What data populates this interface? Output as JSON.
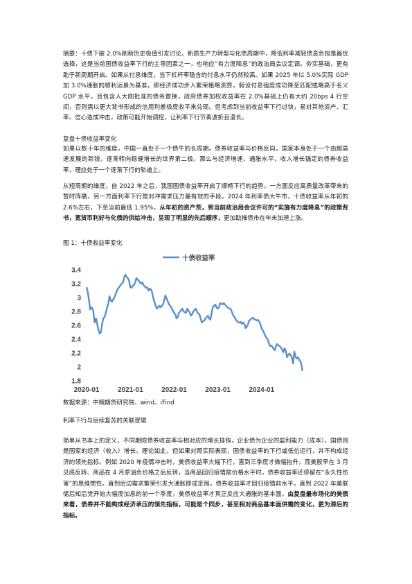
{
  "abstract": "摘要：十债下破 2.0%刷新历史极值引发讨论。新质生产力转型与化债周期中，降低利率减轻债息负担是最优选择，这是当前国债收益率下行的主导因素之一，也响应“有力度降息”的政治局会议定调。夯实基础，更有助于新周期开启。如果从付息维度，当下杠杆率隐含的付息水平仍然较高。如果 2025 年以 5.0%实际 GDP 加 3.0%通胀的顺利远景为基准，即经济成功步入繁荣粗略测算，假设付息强度成功降至匹配或略高于名义 GDP 水平，且包含人大刚批准的债务置换，政府债券加权收益率在 2.0%基础上仍有大约 20bps 4 行空间，否则需以更大背书形成的信用利差极度收平来兑现。但考虑到当前收益率下行过快，易对其他资产、汇率、信心造成冲击，政策可能开始调控，让利率下行节奏波折且漫长。",
  "section1": {
    "heading": "复盘十债收益率变化",
    "para1": "如果以数十年的维度，中国一直处于一个债牛的长周期。债券收益率与价格反向，国家本身处于一个由超高速发展的新锐，逐渐转向稳健增长的世界第二极。那么与经济增速、通胀水平、收入增长锚定的债券收益率，理应处于一个逐渐下行的轨道上。",
    "para2_normal": "从短周期的维度，自 2022 年之后，我国国债收益率开启了顺畅下行的趋势，一方面反应高质量改革带来的暂时阵痛，另一方面利率下行是对冲需求压力最有效的手段。2024 年利率债大牛市，十债收益率从年初的 2.6%左右，下至当前最低 1.95%，",
    "para2_bold": "从年初的资产荒，到当前政治局会议许可的“实施有力度降息”的政策背书，宽货币利好与化债的供给冲击，呈现了明显的先后顺序，",
    "para2_tail": "更加助推债市在年末加速上涨。"
  },
  "figure": {
    "caption": "图 1：十债收益率变化",
    "source": "数据来源：中粮期货研究院、wind、iFind"
  },
  "chart_data": {
    "type": "line",
    "title": "",
    "xlabel": "",
    "ylabel": "",
    "legend_position": "top-center",
    "grid": false,
    "series": [
      {
        "name": "十债收益率",
        "color": "#5b8ec9",
        "points": [
          [
            "2020-01-02",
            3.14
          ],
          [
            "2020-01-10",
            3.09
          ],
          [
            "2020-01-20",
            2.98
          ],
          [
            "2020-01-31",
            2.83
          ],
          [
            "2020-02-12",
            2.86
          ],
          [
            "2020-02-25",
            2.82
          ],
          [
            "2020-03-08",
            2.64
          ],
          [
            "2020-03-20",
            2.7
          ],
          [
            "2020-04-01",
            2.6
          ],
          [
            "2020-04-10",
            2.53
          ],
          [
            "2020-04-20",
            2.48
          ],
          [
            "2020-04-30",
            2.5
          ],
          [
            "2020-05-10",
            2.62
          ],
          [
            "2020-05-20",
            2.7
          ],
          [
            "2020-05-31",
            2.72
          ],
          [
            "2020-06-10",
            2.78
          ],
          [
            "2020-06-20",
            2.86
          ],
          [
            "2020-06-30",
            2.9
          ],
          [
            "2020-07-10",
            3.02
          ],
          [
            "2020-07-20",
            2.96
          ],
          [
            "2020-07-31",
            2.94
          ],
          [
            "2020-08-10",
            2.97
          ],
          [
            "2020-08-20",
            3.0
          ],
          [
            "2020-08-31",
            3.05
          ],
          [
            "2020-09-10",
            3.1
          ],
          [
            "2020-09-20",
            3.13
          ],
          [
            "2020-09-30",
            3.15
          ],
          [
            "2020-10-10",
            3.18
          ],
          [
            "2020-10-20",
            3.2
          ],
          [
            "2020-11-01",
            3.22
          ],
          [
            "2020-11-12",
            3.3
          ],
          [
            "2020-11-20",
            3.33
          ],
          [
            "2020-11-30",
            3.3
          ],
          [
            "2020-12-10",
            3.28
          ],
          [
            "2020-12-20",
            3.25
          ],
          [
            "2020-12-31",
            3.15
          ],
          [
            "2021-01-10",
            3.14
          ],
          [
            "2021-01-20",
            3.17
          ],
          [
            "2021-01-31",
            3.18
          ],
          [
            "2021-02-10",
            3.22
          ],
          [
            "2021-02-20",
            3.28
          ],
          [
            "2021-02-28",
            3.26
          ],
          [
            "2021-03-10",
            3.25
          ],
          [
            "2021-03-20",
            3.22
          ],
          [
            "2021-03-31",
            3.2
          ],
          [
            "2021-04-10",
            3.22
          ],
          [
            "2021-04-20",
            3.18
          ],
          [
            "2021-04-30",
            3.16
          ],
          [
            "2021-05-10",
            3.14
          ],
          [
            "2021-05-20",
            3.15
          ],
          [
            "2021-05-31",
            3.1
          ],
          [
            "2021-06-10",
            3.13
          ],
          [
            "2021-06-20",
            3.12
          ],
          [
            "2021-06-30",
            3.08
          ],
          [
            "2021-07-10",
            3.0
          ],
          [
            "2021-07-20",
            2.94
          ],
          [
            "2021-07-31",
            2.88
          ],
          [
            "2021-08-10",
            2.84
          ],
          [
            "2021-08-20",
            2.86
          ],
          [
            "2021-08-31",
            2.88
          ],
          [
            "2021-09-10",
            2.86
          ],
          [
            "2021-09-20",
            2.88
          ],
          [
            "2021-09-30",
            2.9
          ],
          [
            "2021-10-10",
            2.96
          ],
          [
            "2021-10-20",
            3.03
          ],
          [
            "2021-10-31",
            2.98
          ],
          [
            "2021-11-10",
            2.94
          ],
          [
            "2021-11-20",
            2.9
          ],
          [
            "2021-11-30",
            2.88
          ],
          [
            "2021-12-10",
            2.85
          ],
          [
            "2021-12-20",
            2.82
          ],
          [
            "2021-12-31",
            2.78
          ],
          [
            "2022-01-10",
            2.76
          ],
          [
            "2022-01-20",
            2.7
          ],
          [
            "2022-01-31",
            2.72
          ],
          [
            "2022-02-10",
            2.78
          ],
          [
            "2022-02-20",
            2.8
          ],
          [
            "2022-02-28",
            2.82
          ],
          [
            "2022-03-10",
            2.84
          ],
          [
            "2022-03-20",
            2.8
          ],
          [
            "2022-03-31",
            2.79
          ],
          [
            "2022-04-10",
            2.78
          ],
          [
            "2022-04-20",
            2.84
          ],
          [
            "2022-04-30",
            2.81
          ],
          [
            "2022-05-10",
            2.79
          ],
          [
            "2022-05-20",
            2.74
          ],
          [
            "2022-05-31",
            2.76
          ],
          [
            "2022-06-10",
            2.8
          ],
          [
            "2022-06-20",
            2.82
          ],
          [
            "2022-06-30",
            2.84
          ],
          [
            "2022-07-10",
            2.8
          ],
          [
            "2022-07-20",
            2.77
          ],
          [
            "2022-07-31",
            2.76
          ],
          [
            "2022-08-10",
            2.7
          ],
          [
            "2022-08-20",
            2.64
          ],
          [
            "2022-08-31",
            2.66
          ],
          [
            "2022-09-10",
            2.67
          ],
          [
            "2022-09-20",
            2.7
          ],
          [
            "2022-09-30",
            2.72
          ],
          [
            "2022-10-10",
            2.74
          ],
          [
            "2022-10-20",
            2.7
          ],
          [
            "2022-10-31",
            2.68
          ],
          [
            "2022-11-10",
            2.78
          ],
          [
            "2022-11-20",
            2.86
          ],
          [
            "2022-11-30",
            2.88
          ],
          [
            "2022-12-10",
            2.9
          ],
          [
            "2022-12-20",
            2.86
          ],
          [
            "2022-12-31",
            2.84
          ],
          [
            "2023-01-10",
            2.86
          ],
          [
            "2023-01-20",
            2.92
          ],
          [
            "2023-01-31",
            2.91
          ],
          [
            "2023-02-10",
            2.9
          ],
          [
            "2023-02-20",
            2.92
          ],
          [
            "2023-02-28",
            2.9
          ],
          [
            "2023-03-10",
            2.88
          ],
          [
            "2023-03-20",
            2.86
          ],
          [
            "2023-03-31",
            2.85
          ],
          [
            "2023-04-10",
            2.84
          ],
          [
            "2023-04-20",
            2.83
          ],
          [
            "2023-04-30",
            2.78
          ],
          [
            "2023-05-10",
            2.74
          ],
          [
            "2023-05-20",
            2.72
          ],
          [
            "2023-05-31",
            2.68
          ],
          [
            "2023-06-10",
            2.66
          ],
          [
            "2023-06-20",
            2.64
          ],
          [
            "2023-06-30",
            2.64
          ],
          [
            "2023-07-10",
            2.65
          ],
          [
            "2023-07-20",
            2.62
          ],
          [
            "2023-07-31",
            2.64
          ],
          [
            "2023-08-10",
            2.62
          ],
          [
            "2023-08-20",
            2.56
          ],
          [
            "2023-08-31",
            2.58
          ],
          [
            "2023-09-10",
            2.62
          ],
          [
            "2023-09-20",
            2.67
          ],
          [
            "2023-09-30",
            2.68
          ],
          [
            "2023-10-10",
            2.7
          ],
          [
            "2023-10-20",
            2.71
          ],
          [
            "2023-10-31",
            2.69
          ],
          [
            "2023-11-10",
            2.68
          ],
          [
            "2023-11-20",
            2.67
          ],
          [
            "2023-11-30",
            2.68
          ],
          [
            "2023-12-10",
            2.66
          ],
          [
            "2023-12-20",
            2.62
          ],
          [
            "2023-12-31",
            2.56
          ],
          [
            "2024-01-10",
            2.53
          ],
          [
            "2024-01-20",
            2.5
          ],
          [
            "2024-01-31",
            2.45
          ],
          [
            "2024-02-10",
            2.42
          ],
          [
            "2024-02-20",
            2.4
          ],
          [
            "2024-02-29",
            2.35
          ],
          [
            "2024-03-10",
            2.3
          ],
          [
            "2024-03-20",
            2.31
          ],
          [
            "2024-03-31",
            2.29
          ],
          [
            "2024-04-10",
            2.26
          ],
          [
            "2024-04-20",
            2.24
          ],
          [
            "2024-04-30",
            2.3
          ],
          [
            "2024-05-10",
            2.33
          ],
          [
            "2024-05-20",
            2.31
          ],
          [
            "2024-05-31",
            2.3
          ],
          [
            "2024-06-10",
            2.28
          ],
          [
            "2024-06-20",
            2.25
          ],
          [
            "2024-06-30",
            2.21
          ],
          [
            "2024-07-10",
            2.27
          ],
          [
            "2024-07-20",
            2.24
          ],
          [
            "2024-07-31",
            2.14
          ],
          [
            "2024-08-10",
            2.18
          ],
          [
            "2024-08-20",
            2.19
          ],
          [
            "2024-08-31",
            2.17
          ],
          [
            "2024-09-10",
            2.13
          ],
          [
            "2024-09-20",
            2.05
          ],
          [
            "2024-09-30",
            2.22
          ],
          [
            "2024-10-10",
            2.15
          ],
          [
            "2024-10-20",
            2.12
          ],
          [
            "2024-10-31",
            2.14
          ],
          [
            "2024-11-10",
            2.1
          ],
          [
            "2024-11-20",
            2.08
          ],
          [
            "2024-11-30",
            2.02
          ],
          [
            "2024-12-05",
            1.95
          ]
        ]
      }
    ],
    "ylim": [
      1.8,
      3.4
    ],
    "yticks": [
      "1.8",
      "2",
      "2.2",
      "2.4",
      "2.6",
      "2.8",
      "3",
      "3.2",
      "3.4"
    ],
    "xlim": [
      "2020-01-01",
      "2024-12-31"
    ],
    "xticks": [
      {
        "date": "2020-01-01",
        "label": "2020-01"
      },
      {
        "date": "2021-01-01",
        "label": "2021-01"
      },
      {
        "date": "2022-01-01",
        "label": "2022-01"
      },
      {
        "date": "2023-01-01",
        "label": "2023-01"
      },
      {
        "date": "2024-01-01",
        "label": "2024-01"
      }
    ]
  },
  "section2": {
    "heading": "利率下行与后续复苏的关联逻辑",
    "para_normal": "简单从书本上的定义，不同期限债券收益率与相对应的增长挂钩，企业债为企业的盈利能力（成本），国债则是国家的经济（收入）增长。理论如此，但如果对照实际表现，国债收益率的下行或低位运行，并不构成经济的领先指标。例如 2020 年疫情冲击时，美债收益率大幅下行，直到三季度才微幅抬升。而美股早在 3 月见底反转、商品在 4 月原油负价格之后反转，当商品回归疫情前价格水平时，债券收益率还停留在“永久性伤害”的思维惯性。直到后边需求繁荣引发大通胀即成定局，债券收益率才回归疫情前水平。直到 2022 年美联储后知后觉开始大幅度加息的前一个季度，美债收益率才真正反应大通胀的基本面。",
    "para_bold": "由复盘最市场化的美债来看，债券并不能构成经济承压的领先指标，可能是个同步，甚至相对商品基本面供需的变化，更为滞后的指标。"
  }
}
